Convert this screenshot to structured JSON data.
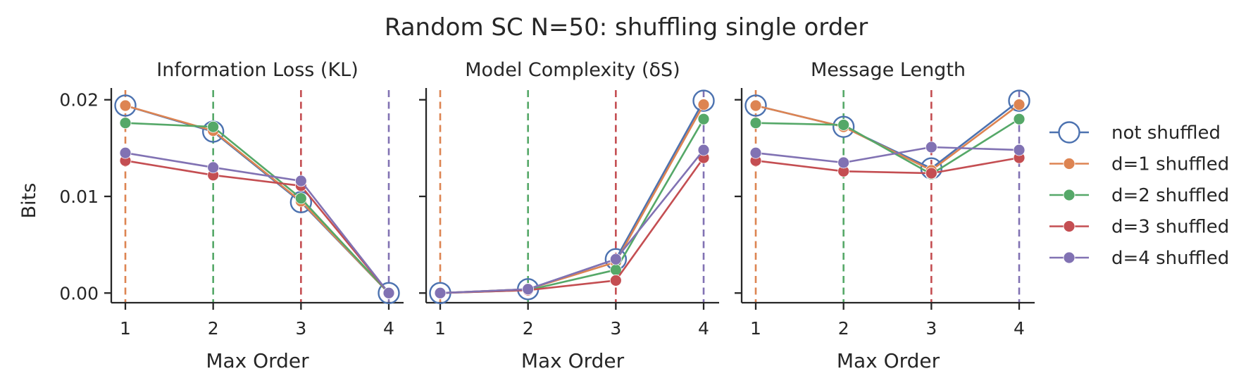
{
  "figure": {
    "title": "Random SC N=50: shuffling single order",
    "ylabel": "Bits"
  },
  "legend": {
    "items": [
      {
        "label": "not shuffled",
        "color": "#4c72b0",
        "marker": "open-circle"
      },
      {
        "label": "d=1 shuffled",
        "color": "#dd8452",
        "marker": "filled-circle"
      },
      {
        "label": "d=2 shuffled",
        "color": "#55a868",
        "marker": "filled-circle"
      },
      {
        "label": "d=3 shuffled",
        "color": "#c44e52",
        "marker": "filled-circle"
      },
      {
        "label": "d=4 shuffled",
        "color": "#8172b3",
        "marker": "filled-circle"
      }
    ]
  },
  "chart_data": [
    {
      "type": "line",
      "title": "Information Loss (KL)",
      "xlabel": "Max Order",
      "ylabel": "Bits",
      "x": [
        1,
        2,
        3,
        4
      ],
      "ylim": [
        -0.001,
        0.021
      ],
      "yticks": [
        "0.00",
        "0.01",
        "0.02"
      ],
      "vlines": [
        {
          "x": 1,
          "color": "#dd8452"
        },
        {
          "x": 2,
          "color": "#55a868"
        },
        {
          "x": 3,
          "color": "#c44e52"
        },
        {
          "x": 4,
          "color": "#8172b3"
        }
      ],
      "series": [
        {
          "name": "not shuffled",
          "values": [
            0.0194,
            0.0167,
            0.0094,
            0.0
          ],
          "color": "#4c72b0"
        },
        {
          "name": "d=1 shuffled",
          "values": [
            0.0194,
            0.0168,
            0.0095,
            0.0
          ],
          "color": "#dd8452"
        },
        {
          "name": "d=2 shuffled",
          "values": [
            0.0176,
            0.0172,
            0.0098,
            0.0
          ],
          "color": "#55a868"
        },
        {
          "name": "d=3 shuffled",
          "values": [
            0.0137,
            0.0122,
            0.0111,
            0.0
          ],
          "color": "#c44e52"
        },
        {
          "name": "d=4 shuffled",
          "values": [
            0.0145,
            0.013,
            0.0116,
            0.0
          ],
          "color": "#8172b3"
        }
      ]
    },
    {
      "type": "line",
      "title": "Model Complexity (δS)",
      "xlabel": "Max Order",
      "x": [
        1,
        2,
        3,
        4
      ],
      "ylim": [
        -0.001,
        0.021
      ],
      "vlines": [
        {
          "x": 1,
          "color": "#dd8452"
        },
        {
          "x": 2,
          "color": "#55a868"
        },
        {
          "x": 3,
          "color": "#c44e52"
        },
        {
          "x": 4,
          "color": "#8172b3"
        }
      ],
      "series": [
        {
          "name": "not shuffled",
          "values": [
            0.0,
            0.0004,
            0.0035,
            0.0199
          ],
          "color": "#4c72b0"
        },
        {
          "name": "d=1 shuffled",
          "values": [
            0.0,
            0.0004,
            0.0032,
            0.0195
          ],
          "color": "#dd8452"
        },
        {
          "name": "d=2 shuffled",
          "values": [
            0.0,
            0.0003,
            0.0024,
            0.018
          ],
          "color": "#55a868"
        },
        {
          "name": "d=3 shuffled",
          "values": [
            0.0,
            0.0003,
            0.0013,
            0.014
          ],
          "color": "#c44e52"
        },
        {
          "name": "d=4 shuffled",
          "values": [
            0.0,
            0.0004,
            0.0035,
            0.0148
          ],
          "color": "#8172b3"
        }
      ]
    },
    {
      "type": "line",
      "title": "Message Length",
      "xlabel": "Max Order",
      "x": [
        1,
        2,
        3,
        4
      ],
      "ylim": [
        -0.001,
        0.021
      ],
      "vlines": [
        {
          "x": 1,
          "color": "#dd8452"
        },
        {
          "x": 2,
          "color": "#55a868"
        },
        {
          "x": 3,
          "color": "#c44e52"
        },
        {
          "x": 4,
          "color": "#8172b3"
        }
      ],
      "series": [
        {
          "name": "not shuffled",
          "values": [
            0.0194,
            0.0172,
            0.0129,
            0.0199
          ],
          "color": "#4c72b0"
        },
        {
          "name": "d=1 shuffled",
          "values": [
            0.0194,
            0.0172,
            0.0127,
            0.0195
          ],
          "color": "#dd8452"
        },
        {
          "name": "d=2 shuffled",
          "values": [
            0.0176,
            0.0174,
            0.0123,
            0.018
          ],
          "color": "#55a868"
        },
        {
          "name": "d=3 shuffled",
          "values": [
            0.0137,
            0.0126,
            0.0124,
            0.014
          ],
          "color": "#c44e52"
        },
        {
          "name": "d=4 shuffled",
          "values": [
            0.0145,
            0.0135,
            0.0151,
            0.0148
          ],
          "color": "#8172b3"
        }
      ]
    }
  ]
}
